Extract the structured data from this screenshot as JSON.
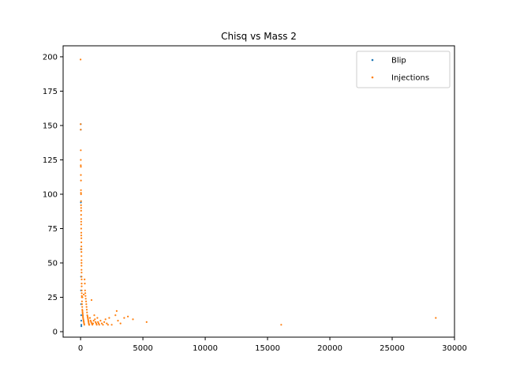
{
  "chart_data": {
    "type": "scatter",
    "title": "Chisq vs Mass 2",
    "xlabel": "",
    "ylabel": "",
    "xlim": [
      -1400,
      30000
    ],
    "ylim": [
      -4,
      208
    ],
    "xticks": [
      0,
      5000,
      10000,
      15000,
      20000,
      25000,
      30000
    ],
    "yticks": [
      0,
      25,
      50,
      75,
      100,
      125,
      150,
      175,
      200
    ],
    "grid": false,
    "legend_position": "top-right",
    "series": [
      {
        "name": "Blip",
        "color": "#1f77b4",
        "points": [
          [
            20,
            151
          ],
          [
            20,
            147
          ],
          [
            25,
            94
          ],
          [
            30,
            60
          ],
          [
            35,
            40
          ],
          [
            40,
            30
          ],
          [
            45,
            20
          ],
          [
            50,
            12
          ],
          [
            55,
            8
          ],
          [
            60,
            5
          ],
          [
            65,
            4
          ]
        ]
      },
      {
        "name": "Injections",
        "color": "#ff7f0e",
        "points": [
          [
            0,
            198
          ],
          [
            5,
            151
          ],
          [
            10,
            147
          ],
          [
            15,
            132
          ],
          [
            18,
            125
          ],
          [
            20,
            121
          ],
          [
            22,
            120
          ],
          [
            25,
            114
          ],
          [
            28,
            110
          ],
          [
            30,
            103
          ],
          [
            32,
            101
          ],
          [
            35,
            100
          ],
          [
            38,
            95
          ],
          [
            40,
            92
          ],
          [
            42,
            90
          ],
          [
            44,
            88
          ],
          [
            45,
            85
          ],
          [
            47,
            82
          ],
          [
            48,
            80
          ],
          [
            50,
            78
          ],
          [
            52,
            75
          ],
          [
            55,
            72
          ],
          [
            58,
            70
          ],
          [
            60,
            68
          ],
          [
            62,
            65
          ],
          [
            64,
            62
          ],
          [
            66,
            60
          ],
          [
            68,
            58
          ],
          [
            70,
            55
          ],
          [
            72,
            52
          ],
          [
            74,
            50
          ],
          [
            76,
            48
          ],
          [
            78,
            45
          ],
          [
            80,
            43
          ],
          [
            82,
            40
          ],
          [
            85,
            38
          ],
          [
            88,
            35
          ],
          [
            90,
            33
          ],
          [
            92,
            30
          ],
          [
            95,
            28
          ],
          [
            98,
            26
          ],
          [
            100,
            25
          ],
          [
            110,
            22
          ],
          [
            120,
            20
          ],
          [
            130,
            18
          ],
          [
            140,
            16
          ],
          [
            150,
            15
          ],
          [
            160,
            14
          ],
          [
            170,
            13
          ],
          [
            180,
            12
          ],
          [
            190,
            11
          ],
          [
            200,
            10
          ],
          [
            220,
            9
          ],
          [
            240,
            8
          ],
          [
            260,
            7
          ],
          [
            280,
            6
          ],
          [
            300,
            5
          ],
          [
            320,
            38
          ],
          [
            340,
            35
          ],
          [
            360,
            30
          ],
          [
            380,
            28
          ],
          [
            400,
            26
          ],
          [
            420,
            24
          ],
          [
            440,
            22
          ],
          [
            460,
            20
          ],
          [
            480,
            18
          ],
          [
            500,
            16
          ],
          [
            520,
            14
          ],
          [
            540,
            12
          ],
          [
            560,
            11
          ],
          [
            580,
            10
          ],
          [
            600,
            9
          ],
          [
            620,
            8
          ],
          [
            640,
            7
          ],
          [
            660,
            6
          ],
          [
            680,
            5
          ],
          [
            700,
            5
          ],
          [
            750,
            10
          ],
          [
            800,
            8
          ],
          [
            850,
            7
          ],
          [
            900,
            6
          ],
          [
            950,
            5
          ],
          [
            1000,
            6
          ],
          [
            1050,
            8
          ],
          [
            1100,
            12
          ],
          [
            1150,
            9
          ],
          [
            1200,
            7
          ],
          [
            1250,
            6
          ],
          [
            1300,
            5
          ],
          [
            1350,
            10
          ],
          [
            1400,
            7
          ],
          [
            1450,
            6
          ],
          [
            1500,
            5
          ],
          [
            1600,
            8
          ],
          [
            1700,
            6
          ],
          [
            1800,
            5
          ],
          [
            1900,
            7
          ],
          [
            2000,
            9
          ],
          [
            2100,
            6
          ],
          [
            2200,
            5
          ],
          [
            2300,
            10
          ],
          [
            2500,
            5
          ],
          [
            2800,
            12
          ],
          [
            2900,
            15
          ],
          [
            3000,
            8
          ],
          [
            3200,
            6
          ],
          [
            3500,
            10
          ],
          [
            3800,
            11
          ],
          [
            4200,
            9
          ],
          [
            5300,
            7
          ],
          [
            16100,
            5
          ],
          [
            28500,
            10
          ],
          [
            880,
            23
          ],
          [
            150,
            25
          ],
          [
            250,
            27
          ]
        ]
      }
    ]
  }
}
